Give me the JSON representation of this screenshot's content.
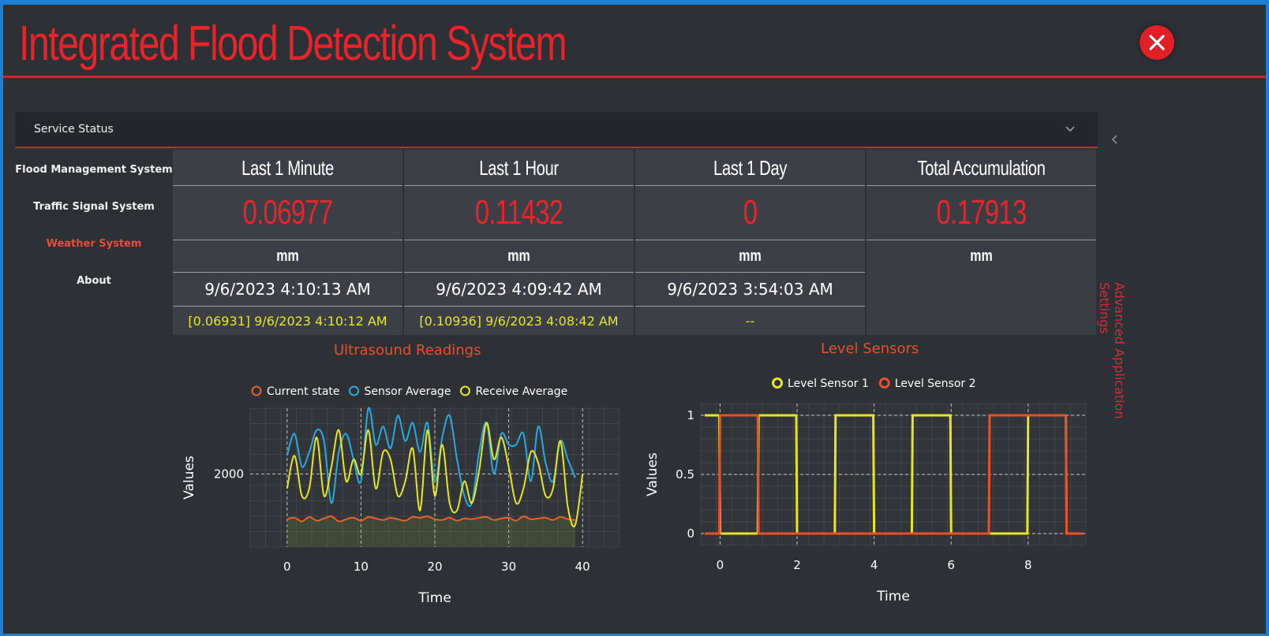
{
  "app": {
    "title": "Integrated Flood Detection System",
    "accent": "#e8242a"
  },
  "service": {
    "label": "Service Status"
  },
  "nav": {
    "items": [
      {
        "label": "Flood Management System"
      },
      {
        "label": "Traffic Signal System"
      },
      {
        "label": "Weather System",
        "active": true
      },
      {
        "label": "About"
      }
    ]
  },
  "stats": [
    {
      "header": "Last 1 Minute",
      "value": "0.06977",
      "unit": "mm",
      "time": "9/6/2023 4:10:13 AM",
      "peak": "[0.06931] 9/6/2023 4:10:12 AM"
    },
    {
      "header": "Last 1 Hour",
      "value": "0.11432",
      "unit": "mm",
      "time": "9/6/2023 4:09:42 AM",
      "peak": "[0.10936] 9/6/2023 4:08:42 AM"
    },
    {
      "header": "Last 1 Day",
      "value": "0",
      "unit": "mm",
      "time": "9/6/2023 3:54:03 AM",
      "peak": "--"
    },
    {
      "header": "Total Accumulation",
      "value": "0.17913",
      "unit": "mm",
      "time": "",
      "peak": ""
    }
  ],
  "side": {
    "advanced_label": "Advanced Application Settings"
  },
  "chart_data": [
    {
      "type": "line",
      "title": "Ultrasound Readings",
      "xlabel": "Time",
      "ylabel": "Values",
      "xlim": [
        -5,
        45
      ],
      "ylim": [
        1000,
        2900
      ],
      "xticks": [
        0,
        10,
        20,
        30,
        40
      ],
      "yticks": [
        2000
      ],
      "legend_position": "top",
      "series": [
        {
          "name": "Current state",
          "color": "#e8622a",
          "x": [
            0,
            1,
            2,
            3,
            4,
            5,
            6,
            7,
            8,
            9,
            10,
            11,
            12,
            13,
            14,
            15,
            16,
            17,
            18,
            19,
            20,
            21,
            22,
            23,
            24,
            25,
            26,
            27,
            28,
            29,
            30,
            31,
            32,
            33,
            34,
            35,
            36,
            37,
            38,
            39
          ],
          "values": [
            1380,
            1400,
            1350,
            1410,
            1360,
            1390,
            1420,
            1350,
            1380,
            1400,
            1360,
            1410,
            1390,
            1370,
            1400,
            1380,
            1360,
            1410,
            1400,
            1420,
            1380,
            1370,
            1400,
            1360,
            1390,
            1380,
            1400,
            1410,
            1370,
            1390,
            1400,
            1360,
            1420,
            1380,
            1390,
            1400,
            1370,
            1410,
            1380,
            1370
          ]
        },
        {
          "name": "Sensor Average",
          "color": "#2aa8e0",
          "x": [
            0,
            1,
            2,
            3,
            4,
            5,
            6,
            7,
            8,
            9,
            10,
            11,
            12,
            13,
            14,
            15,
            16,
            17,
            18,
            19,
            20,
            21,
            22,
            23,
            24,
            25,
            26,
            27,
            28,
            29,
            30,
            31,
            32,
            33,
            34,
            35,
            36,
            37,
            38,
            39
          ],
          "values": [
            2250,
            2550,
            2100,
            2300,
            2600,
            2450,
            1600,
            2300,
            2550,
            2200,
            1900,
            2900,
            2400,
            2650,
            2350,
            2800,
            2450,
            2700,
            2300,
            2700,
            1900,
            2500,
            2800,
            2200,
            1700,
            1600,
            2300,
            2700,
            2000,
            2550,
            2400,
            2400,
            2550,
            1900,
            2650,
            2150,
            1900,
            2450,
            2200,
            1950
          ]
        },
        {
          "name": "Receive Average",
          "color": "#e6e623",
          "x": [
            0,
            1,
            2,
            3,
            4,
            5,
            6,
            7,
            8,
            9,
            10,
            11,
            12,
            13,
            14,
            15,
            16,
            17,
            18,
            19,
            20,
            21,
            22,
            23,
            24,
            25,
            26,
            27,
            28,
            29,
            30,
            31,
            32,
            33,
            34,
            35,
            36,
            37,
            38,
            39,
            40
          ],
          "values": [
            1800,
            2250,
            1700,
            1800,
            2500,
            1700,
            2100,
            2600,
            1900,
            2200,
            2000,
            2600,
            1800,
            2300,
            2200,
            1700,
            1900,
            2350,
            1500,
            2600,
            1700,
            2400,
            1600,
            1500,
            1900,
            1600,
            2050,
            2700,
            2200,
            2500,
            2100,
            1600,
            1800,
            2300,
            2150,
            1700,
            1800,
            2450,
            1550,
            1300,
            2000
          ]
        }
      ]
    },
    {
      "type": "line",
      "title": "Level Sensors",
      "xlabel": "Time",
      "ylabel": "Values",
      "xlim": [
        -0.5,
        9.5
      ],
      "ylim": [
        -0.1,
        1.1
      ],
      "xticks": [
        0,
        2,
        4,
        6,
        8
      ],
      "yticks": [
        0,
        0.5,
        1
      ],
      "legend_position": "top",
      "step": true,
      "series": [
        {
          "name": "Level Sensor 1",
          "color": "#e6e623",
          "x": [
            -0.4,
            0,
            1,
            2,
            3,
            4,
            5,
            6,
            7,
            8,
            9
          ],
          "values": [
            1,
            0,
            1,
            0,
            1,
            0,
            1,
            0,
            0,
            1,
            0
          ]
        },
        {
          "name": "Level Sensor 2",
          "color": "#e8502a",
          "x": [
            -0.4,
            0,
            1,
            2,
            3,
            4,
            5,
            6,
            7,
            8,
            9
          ],
          "values": [
            0,
            1,
            0,
            0,
            0,
            0,
            0,
            0,
            1,
            1,
            0
          ]
        }
      ]
    }
  ]
}
